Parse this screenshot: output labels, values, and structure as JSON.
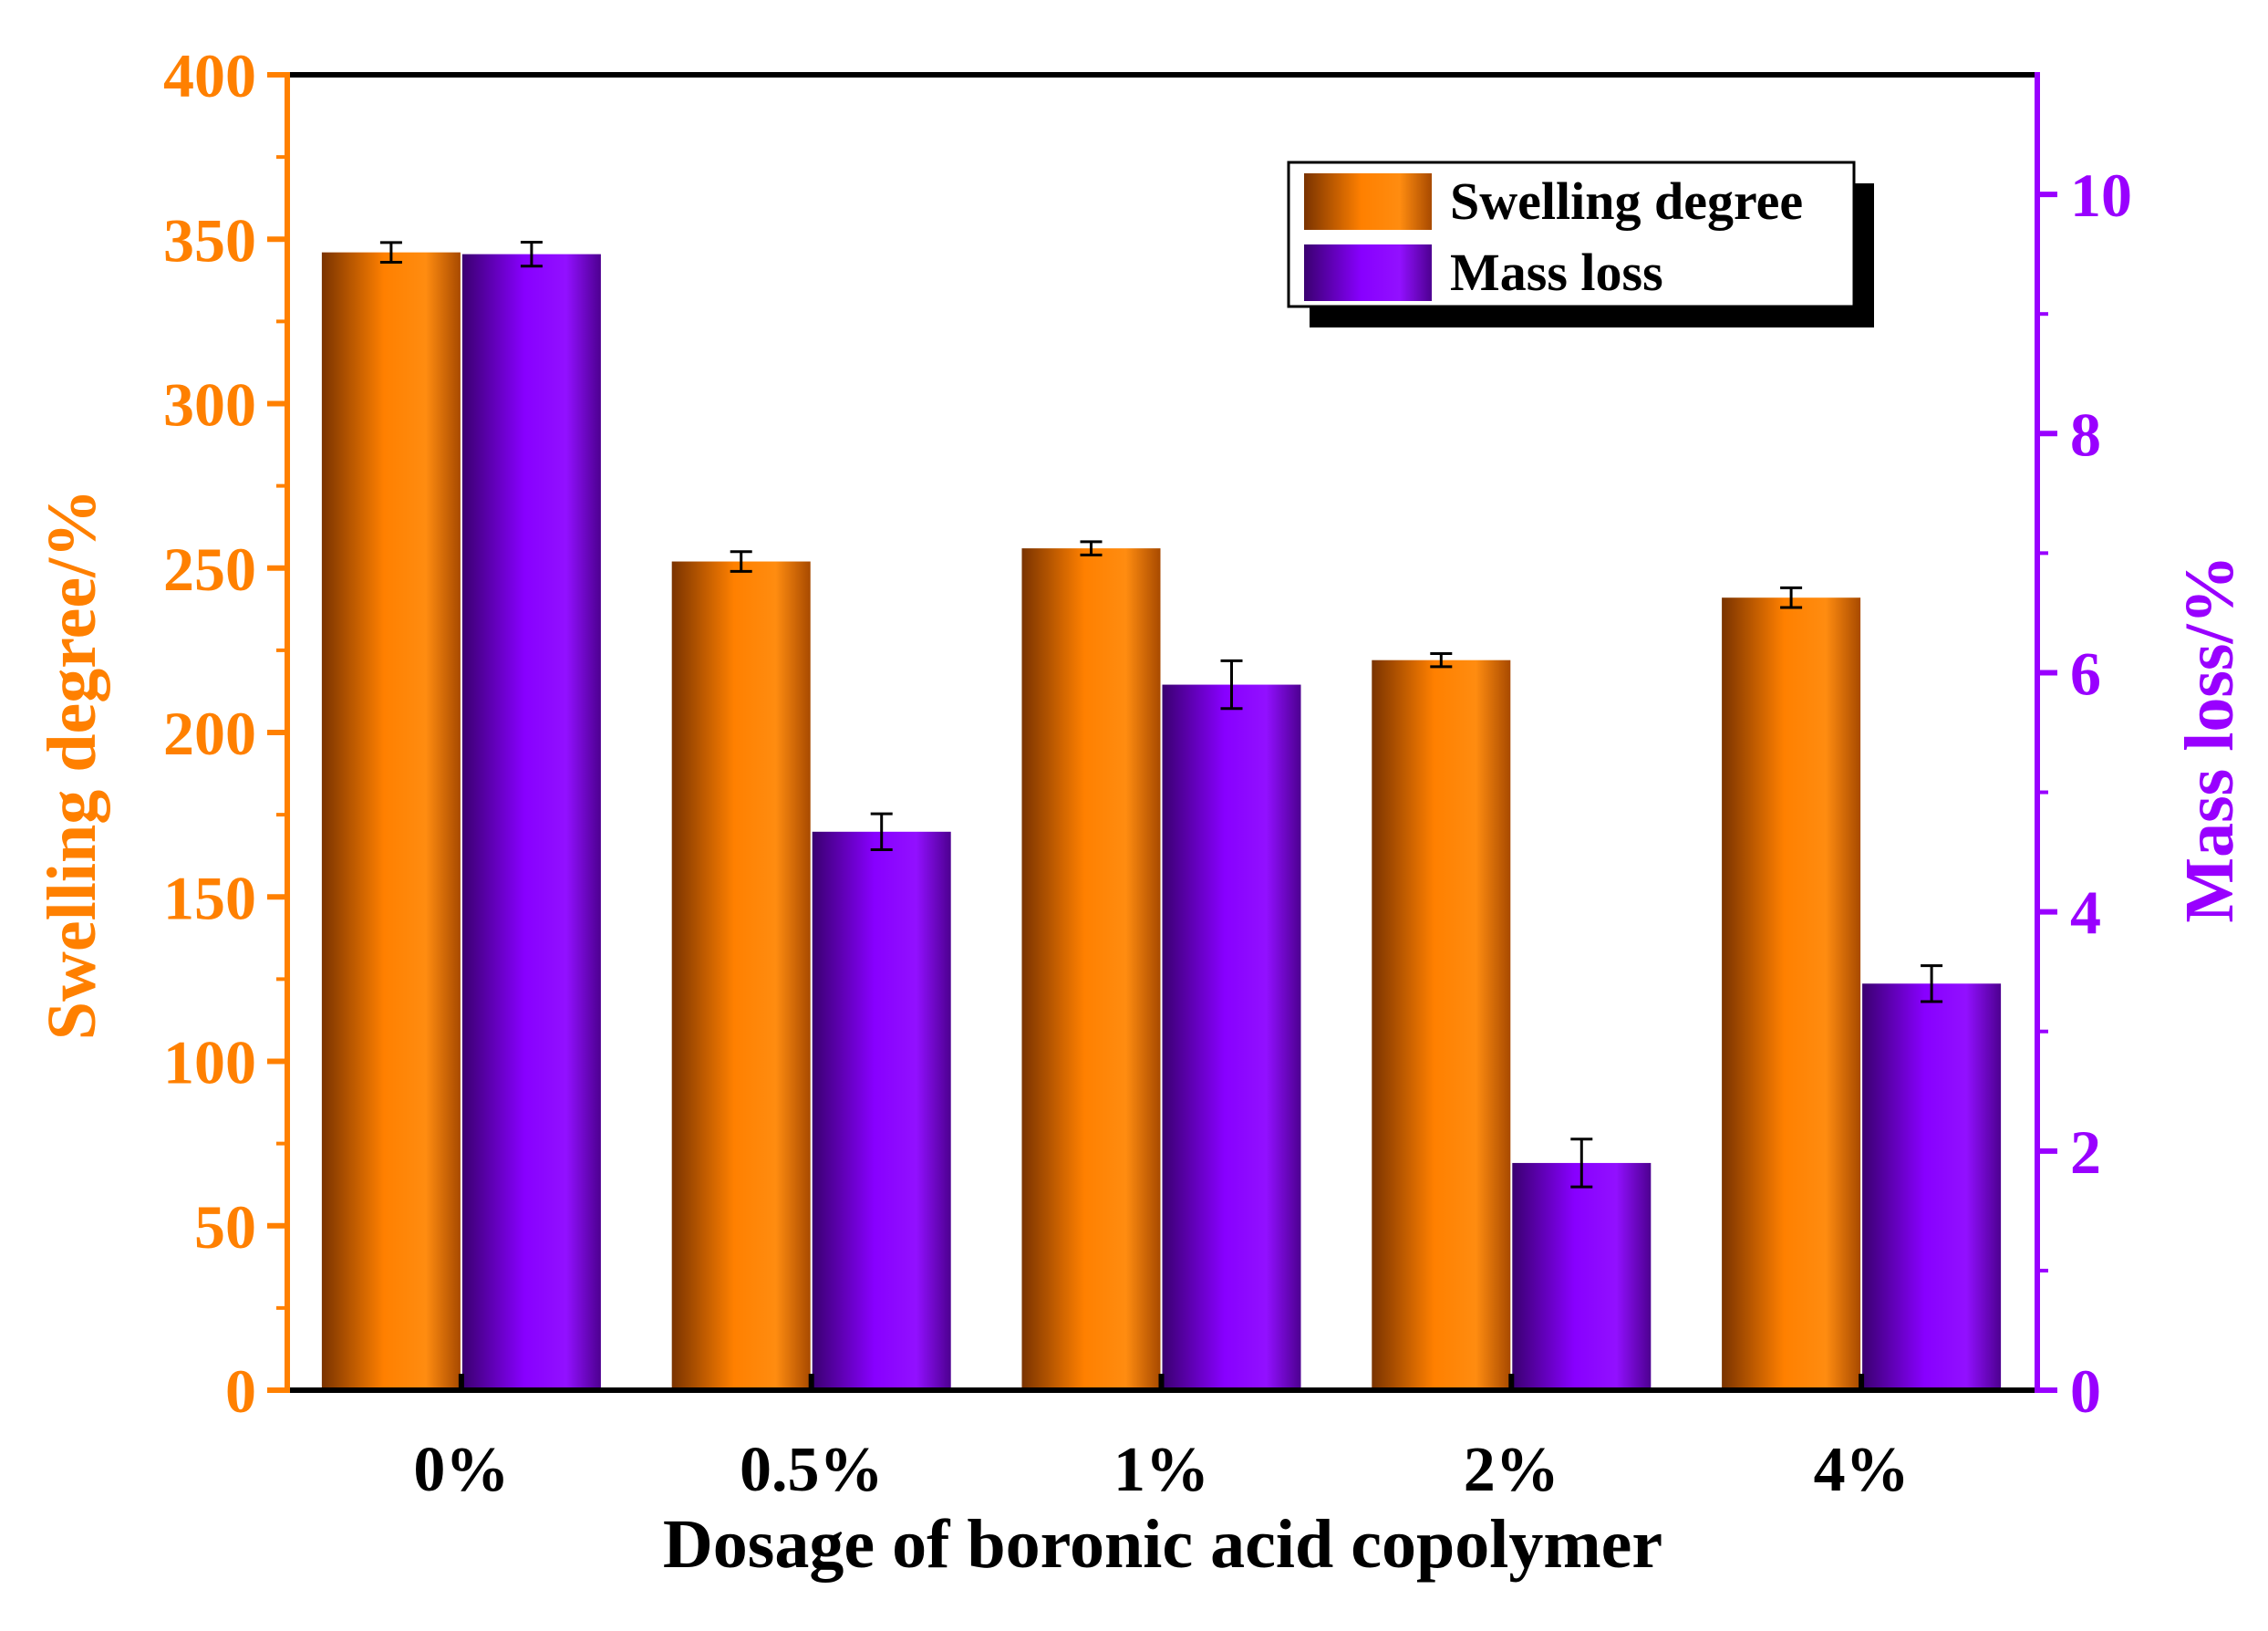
{
  "chart_data": {
    "type": "bar",
    "categories": [
      "0%",
      "0.5%",
      "1%",
      "2%",
      "4%"
    ],
    "xlabel": "Dosage of boronic acid copolymer",
    "y_left": {
      "label": "Swelling degree/%",
      "range": [
        0,
        400
      ],
      "ticks": [
        0,
        50,
        100,
        150,
        200,
        250,
        300,
        350,
        400
      ],
      "color": "#ff8000"
    },
    "y_right": {
      "label": "Mass loss/%",
      "range": [
        0,
        11
      ],
      "ticks": [
        0,
        2,
        4,
        6,
        8,
        10
      ],
      "color": "#9900ff"
    },
    "series": [
      {
        "name": "Swelling degree",
        "axis": "left",
        "values": [
          346,
          252,
          256,
          222,
          241
        ],
        "errors": [
          3,
          3,
          2,
          2,
          3
        ],
        "color": "#ff8000",
        "dark_color": "#7a3300"
      },
      {
        "name": "Mass loss",
        "axis": "right",
        "values": [
          9.5,
          4.67,
          5.9,
          1.9,
          3.4
        ],
        "errors": [
          0.1,
          0.15,
          0.2,
          0.2,
          0.15
        ],
        "color": "#8800ff",
        "dark_color": "#3a0070"
      }
    ],
    "legend_position": "top-right"
  }
}
